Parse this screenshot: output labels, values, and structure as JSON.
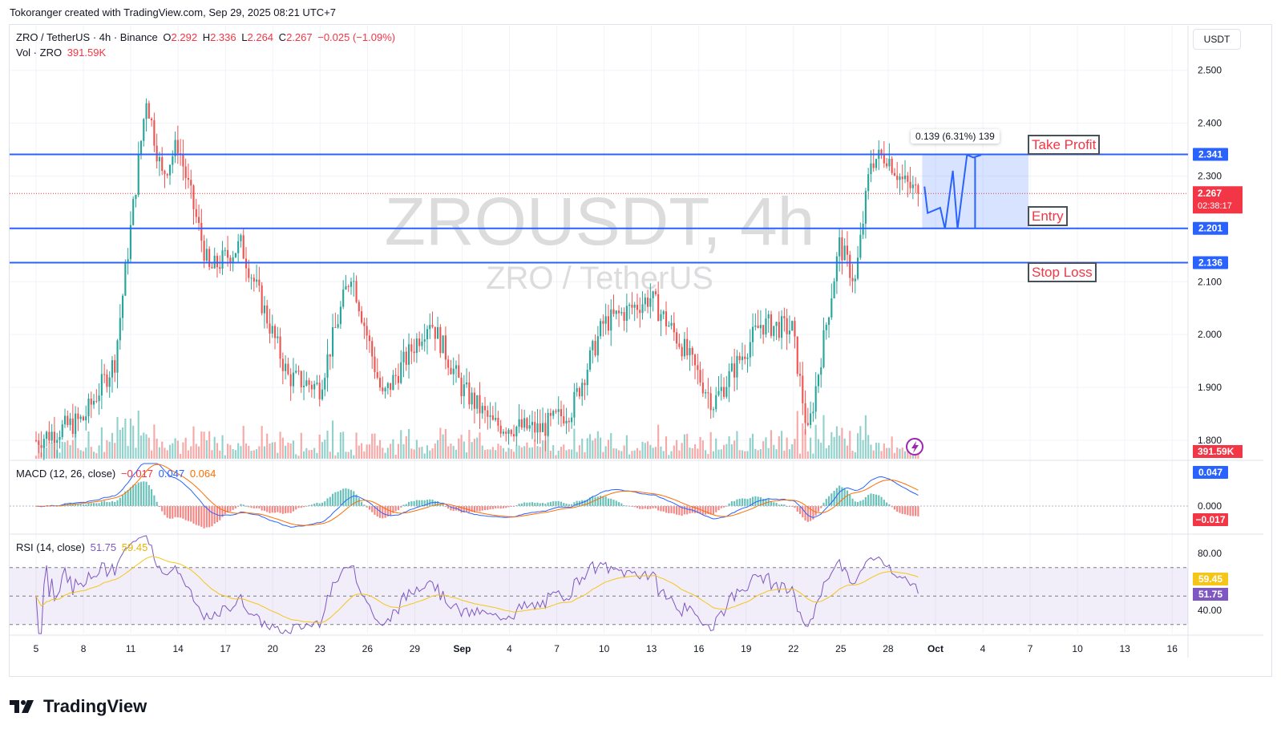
{
  "header": {
    "credit": "Tokoranger created with TradingView.com, Sep 29, 2025 08:21 UTC+7"
  },
  "currency_button": "USDT",
  "legend": {
    "symbol": "ZRO / TetherUS · 4h · Binance",
    "o_label": "O",
    "o_val": "2.292",
    "h_label": "H",
    "h_val": "2.336",
    "l_label": "L",
    "l_val": "2.264",
    "c_label": "C",
    "c_val": "2.267",
    "change": "−0.025 (−1.09%)",
    "vol_label": "Vol · ZRO",
    "vol_val": "391.59K"
  },
  "watermark": {
    "main": "ZROUSDT, 4h",
    "sub": "ZRO / TetherUS"
  },
  "annotations": {
    "take_profit": "Take Profit",
    "entry": "Entry",
    "stop_loss": "Stop Loss",
    "measure": "0.139 (6.31%) 139"
  },
  "macd_legend": {
    "label": "MACD (12, 26, close)",
    "hist": "−0.017",
    "macd": "0.047",
    "signal": "0.064"
  },
  "rsi_legend": {
    "label": "RSI (14, close)",
    "rsi": "51.75",
    "ma": "59.45"
  },
  "price_tags": {
    "tp": "2.341",
    "last": "2.267",
    "countdown": "02:38:17",
    "entry": "2.201",
    "sl": "2.136",
    "vol": "391.59K",
    "macd": "0.047",
    "hist": "−0.017",
    "rsi_ma": "59.45",
    "rsi": "51.75"
  },
  "footer": {
    "brand": "TradingView"
  },
  "colors": {
    "up": "#26a69a",
    "down": "#ef5350",
    "level": "#2962ff",
    "macd": "#2962ff",
    "signal": "#ff6d00",
    "rsi": "#7e57c2",
    "rsi_ma": "#f5c518"
  },
  "chart_data": [
    {
      "type": "candlestick",
      "title": "ZRO / TetherUS · 4h · Binance",
      "y_ticks": [
        "2.500",
        "2.400",
        "2.300",
        "2.200",
        "2.100",
        "2.000",
        "1.900",
        "1.800"
      ],
      "ylim": [
        1.765,
        2.58
      ],
      "x_ticks": [
        "5",
        "8",
        "11",
        "14",
        "17",
        "20",
        "23",
        "26",
        "29",
        "Sep",
        "4",
        "7",
        "10",
        "13",
        "16",
        "19",
        "22",
        "25",
        "28",
        "Oct",
        "4",
        "7",
        "10",
        "13",
        "16"
      ],
      "xlim": [
        "Aug 4",
        "Sep 16"
      ],
      "ohlc_anchors": [
        {
          "t": "Aug 4",
          "close": 1.8
        },
        {
          "t": "Aug 7",
          "close": 1.84
        },
        {
          "t": "Aug 9",
          "close": 1.95
        },
        {
          "t": "Aug 11",
          "close": 2.45
        },
        {
          "t": "Aug 12",
          "close": 2.3
        },
        {
          "t": "Aug 13",
          "close": 2.36
        },
        {
          "t": "Aug 15",
          "close": 2.12
        },
        {
          "t": "Aug 17",
          "close": 2.17
        },
        {
          "t": "Aug 20",
          "close": 1.92
        },
        {
          "t": "Aug 22",
          "close": 1.9
        },
        {
          "t": "Aug 24",
          "close": 2.12
        },
        {
          "t": "Aug 26",
          "close": 1.88
        },
        {
          "t": "Aug 29",
          "close": 2.03
        },
        {
          "t": "Aug 31",
          "close": 1.9
        },
        {
          "t": "Sep 2",
          "close": 1.83
        },
        {
          "t": "Sep 5",
          "close": 1.82
        },
        {
          "t": "Sep 7",
          "close": 1.86
        },
        {
          "t": "Sep 9",
          "close": 2.02
        },
        {
          "t": "Sep 12",
          "close": 2.07
        },
        {
          "t": "Sep 14",
          "close": 1.98
        },
        {
          "t": "Sep 16",
          "close": 1.87
        },
        {
          "t": "Sep 19",
          "close": 2.02
        },
        {
          "t": "Sep 21",
          "close": 2.01
        },
        {
          "t": "Sep 22",
          "close": 1.81
        },
        {
          "t": "Sep 24",
          "close": 2.17
        },
        {
          "t": "Sep 25",
          "close": 2.1
        },
        {
          "t": "Sep 26",
          "close": 2.33
        },
        {
          "t": "Sep 27",
          "close": 2.34
        },
        {
          "t": "Sep 28",
          "close": 2.29
        },
        {
          "t": "Sep 29",
          "close": 2.267
        }
      ],
      "levels": [
        {
          "name": "Take Profit",
          "value": 2.341
        },
        {
          "name": "Entry",
          "value": 2.201
        },
        {
          "name": "Stop Loss",
          "value": 2.136
        }
      ],
      "last_price": 2.267,
      "measure": {
        "from": 2.201,
        "to": 2.341,
        "delta": 0.139,
        "percent": 6.31,
        "bars": 139
      }
    },
    {
      "type": "bar",
      "title": "Vol · ZRO",
      "last_value": "391.59K"
    },
    {
      "type": "line",
      "title": "MACD (12, 26, close)",
      "series": [
        {
          "name": "histogram",
          "last": -0.017
        },
        {
          "name": "MACD",
          "last": 0.047
        },
        {
          "name": "signal",
          "last": 0.064
        }
      ],
      "y_ticks": [
        "0.000"
      ]
    },
    {
      "type": "line",
      "title": "RSI (14, close)",
      "series": [
        {
          "name": "RSI",
          "last": 51.75
        },
        {
          "name": "RSI-based MA",
          "last": 59.45
        }
      ],
      "y_ticks": [
        "80.00",
        "40.00"
      ],
      "bands": [
        70,
        50,
        30
      ]
    }
  ]
}
